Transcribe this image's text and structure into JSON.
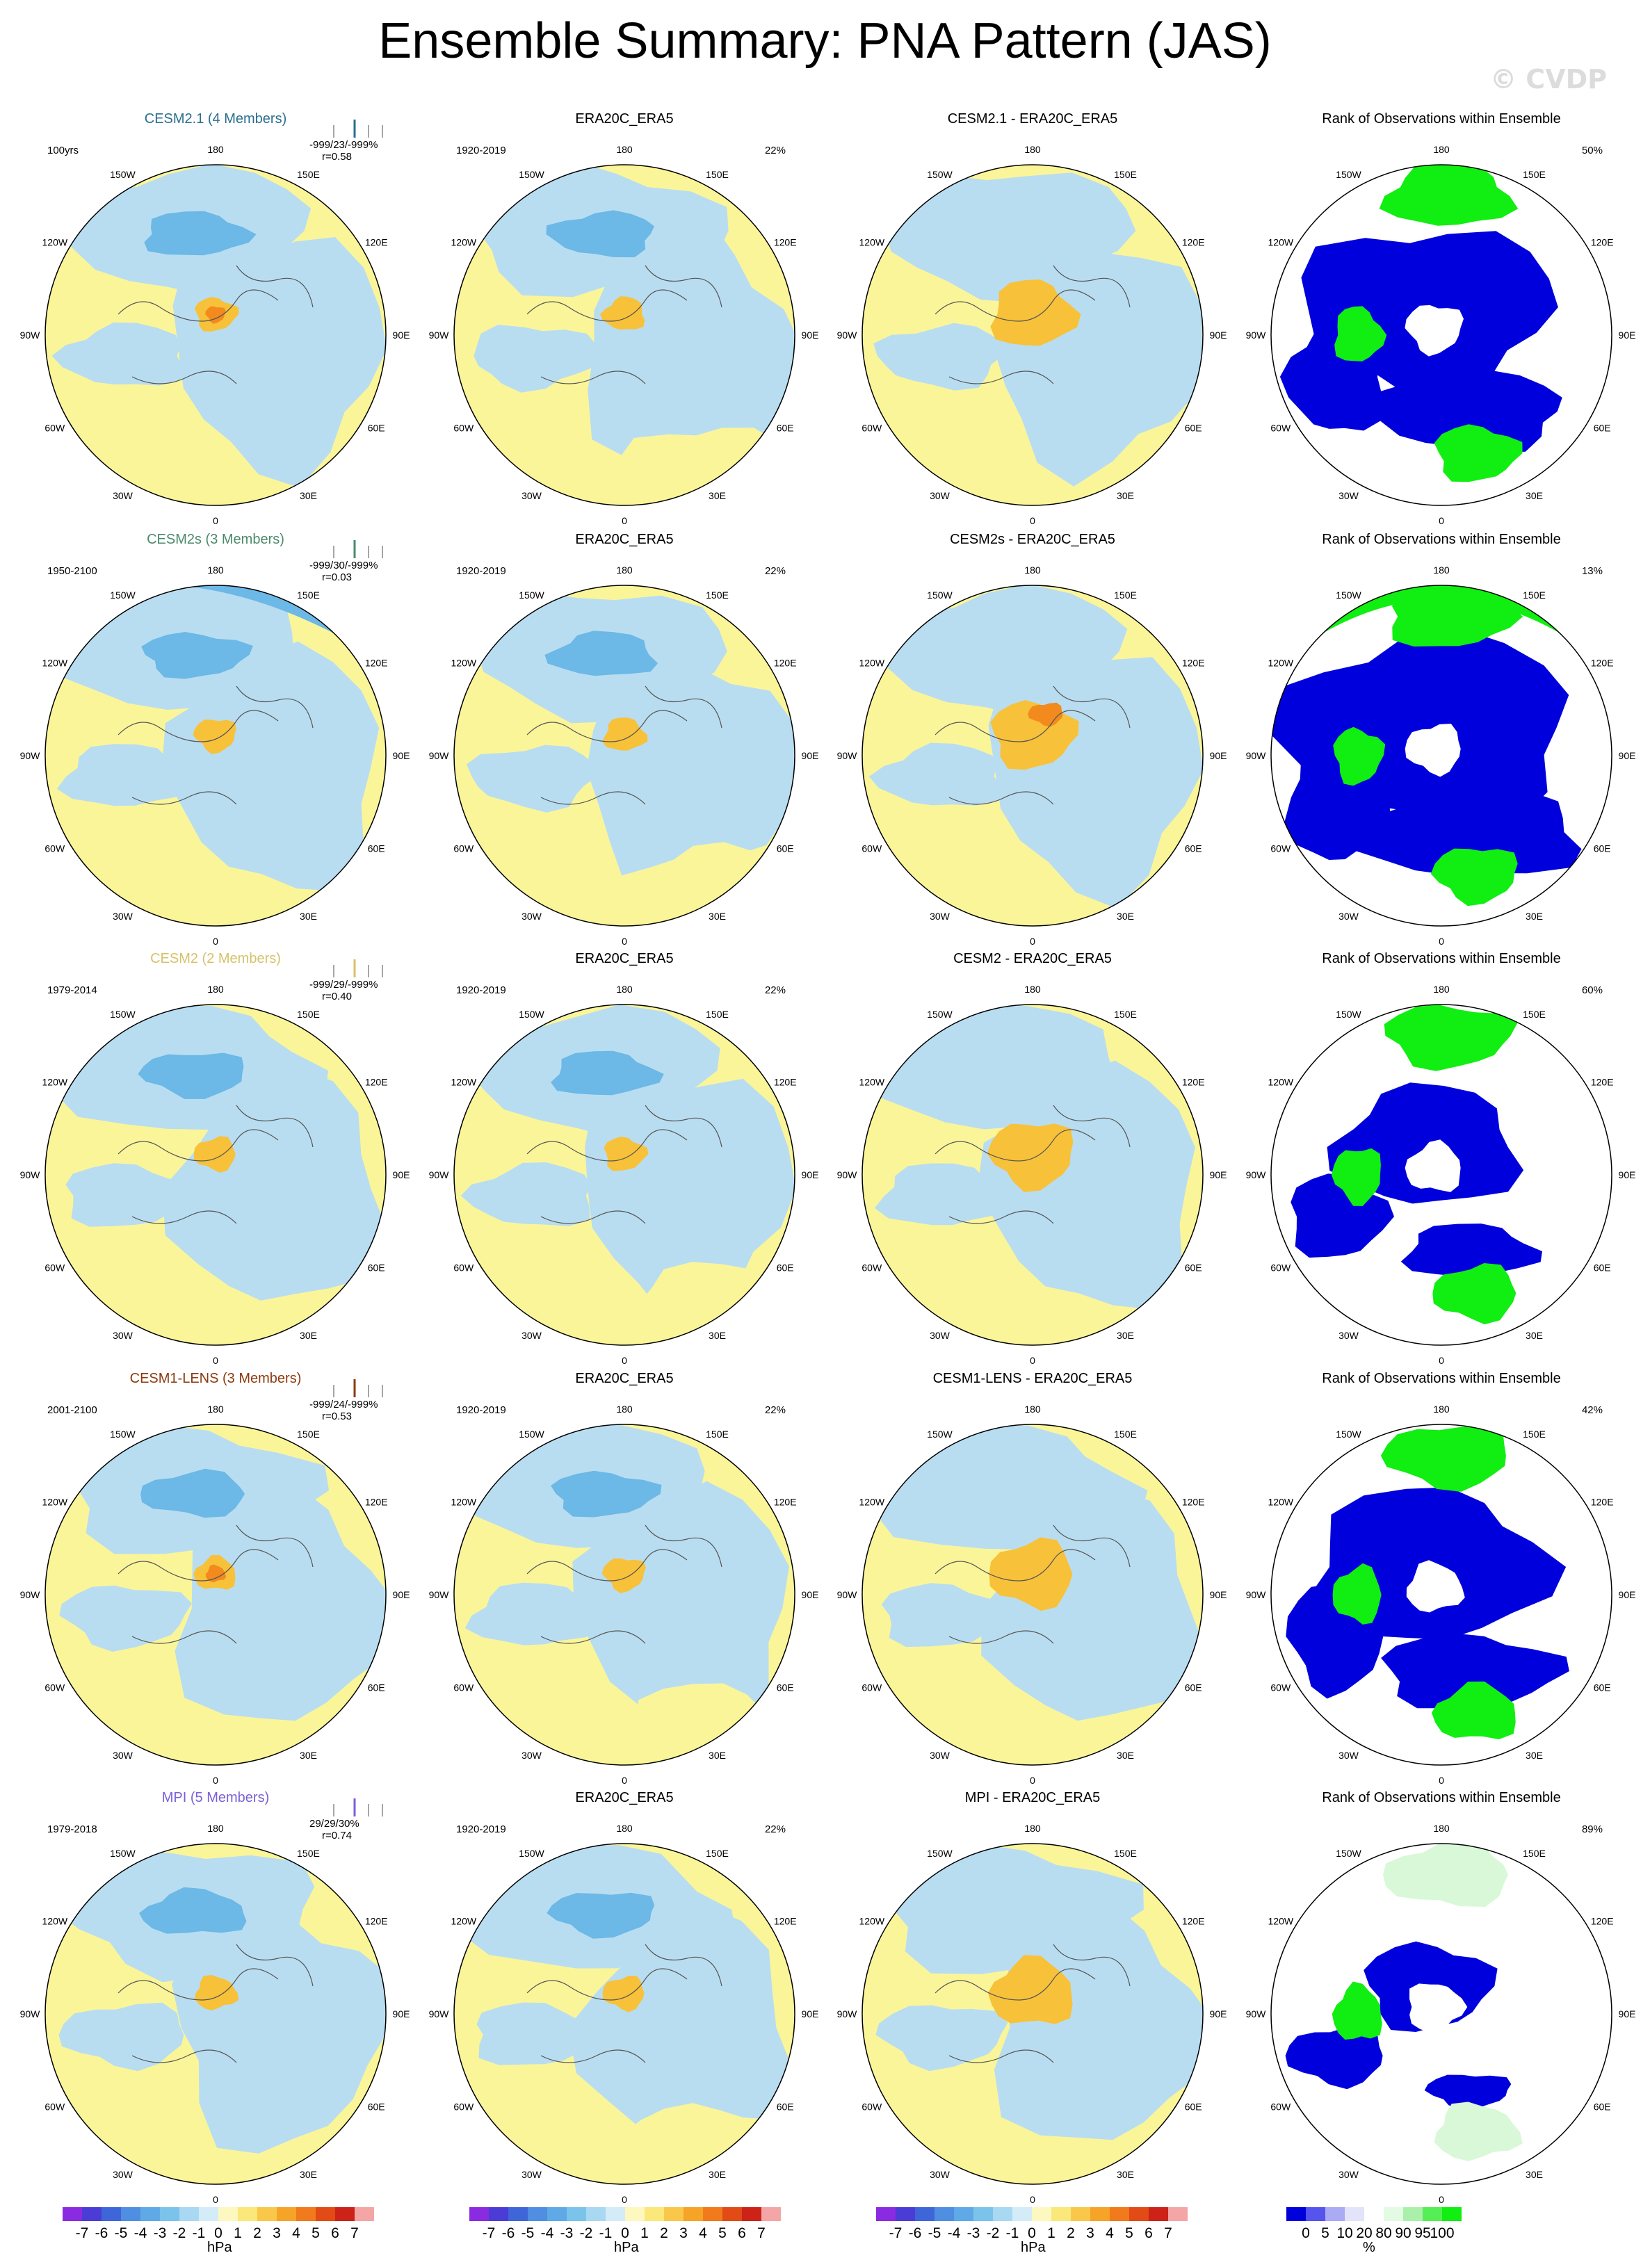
{
  "title": "Ensemble Summary: PNA Pattern (JAS)",
  "watermark": "© CVDP",
  "colors": {
    "neg_light": "#b9ddf0",
    "neg_mid": "#6cb8e6",
    "pos_light": "#fbf59a",
    "pos_mid": "#f7c13a",
    "pos_strong": "#f28a1e",
    "rank_low": "#0000dd",
    "rank_high": "#11ee11",
    "rank_light": "#d8f8d8"
  },
  "lon_labels": [
    "180",
    "150E",
    "120E",
    "90E",
    "60E",
    "30E",
    "0",
    "30W",
    "60W",
    "90W",
    "120W",
    "150W"
  ],
  "rows": [
    {
      "model": "CESM2.1 (4 Members)",
      "model_color": "#2a6f8f",
      "years": "100yrs",
      "stats_line1": "-999/23/-999%",
      "stats_line2": "r=0.58",
      "obs_title": "ERA20C_ERA5",
      "obs_years": "1920-2019",
      "obs_pct": "22%",
      "diff_title": "CESM2.1 - ERA20C_ERA5",
      "rank_title": "Rank of Observations within Ensemble",
      "rank_pct": "50%"
    },
    {
      "model": "CESM2s (3 Members)",
      "model_color": "#4a8a6a",
      "years": "1950-2100",
      "stats_line1": "-999/30/-999%",
      "stats_line2": "r=0.03",
      "obs_title": "ERA20C_ERA5",
      "obs_years": "1920-2019",
      "obs_pct": "22%",
      "diff_title": "CESM2s - ERA20C_ERA5",
      "rank_title": "Rank of Observations within Ensemble",
      "rank_pct": "13%"
    },
    {
      "model": "CESM2 (2 Members)",
      "model_color": "#d6c26a",
      "years": "1979-2014",
      "stats_line1": "-999/29/-999%",
      "stats_line2": "r=0.40",
      "obs_title": "ERA20C_ERA5",
      "obs_years": "1920-2019",
      "obs_pct": "22%",
      "diff_title": "CESM2 - ERA20C_ERA5",
      "rank_title": "Rank of Observations within Ensemble",
      "rank_pct": "60%"
    },
    {
      "model": "CESM1-LENS (3 Members)",
      "model_color": "#8b3a10",
      "years": "2001-2100",
      "stats_line1": "-999/24/-999%",
      "stats_line2": "r=0.53",
      "obs_title": "ERA20C_ERA5",
      "obs_years": "1920-2019",
      "obs_pct": "22%",
      "diff_title": "CESM1-LENS - ERA20C_ERA5",
      "rank_title": "Rank of Observations within Ensemble",
      "rank_pct": "42%"
    },
    {
      "model": "MPI (5 Members)",
      "model_color": "#7b5fd6",
      "years": "1979-2018",
      "stats_line1": "29/29/30%",
      "stats_line2": "r=0.74",
      "obs_title": "ERA20C_ERA5",
      "obs_years": "1920-2019",
      "obs_pct": "22%",
      "diff_title": "MPI - ERA20C_ERA5",
      "rank_title": "Rank of Observations within Ensemble",
      "rank_pct": "89%"
    }
  ],
  "colorbar": {
    "labels": [
      "-7",
      "-6",
      "-5",
      "-4",
      "-3",
      "-2",
      "-1",
      "0",
      "1",
      "2",
      "3",
      "4",
      "5",
      "6",
      "7"
    ],
    "colors": [
      "#8a2be2",
      "#4b3cd6",
      "#3f66d8",
      "#4f8ee0",
      "#5fa9e6",
      "#7cc3ec",
      "#a9d8f2",
      "#d4ecf8",
      "#fdf8c0",
      "#fbe87a",
      "#f9c84a",
      "#f6a428",
      "#f07a1c",
      "#e24a16",
      "#cc2218",
      "#f4a6a6"
    ],
    "units": "hPa"
  },
  "rank_colorbar": {
    "labels": [
      "0",
      "5",
      "10",
      "20",
      "80",
      "90",
      "95",
      "100"
    ],
    "colors": [
      "#0000dd",
      "#5555ee",
      "#aaaaf5",
      "#e3e3fa",
      "#ffffff",
      "#e3fae3",
      "#aaf0aa",
      "#55ee55",
      "#11ee11"
    ],
    "units": "%"
  }
}
